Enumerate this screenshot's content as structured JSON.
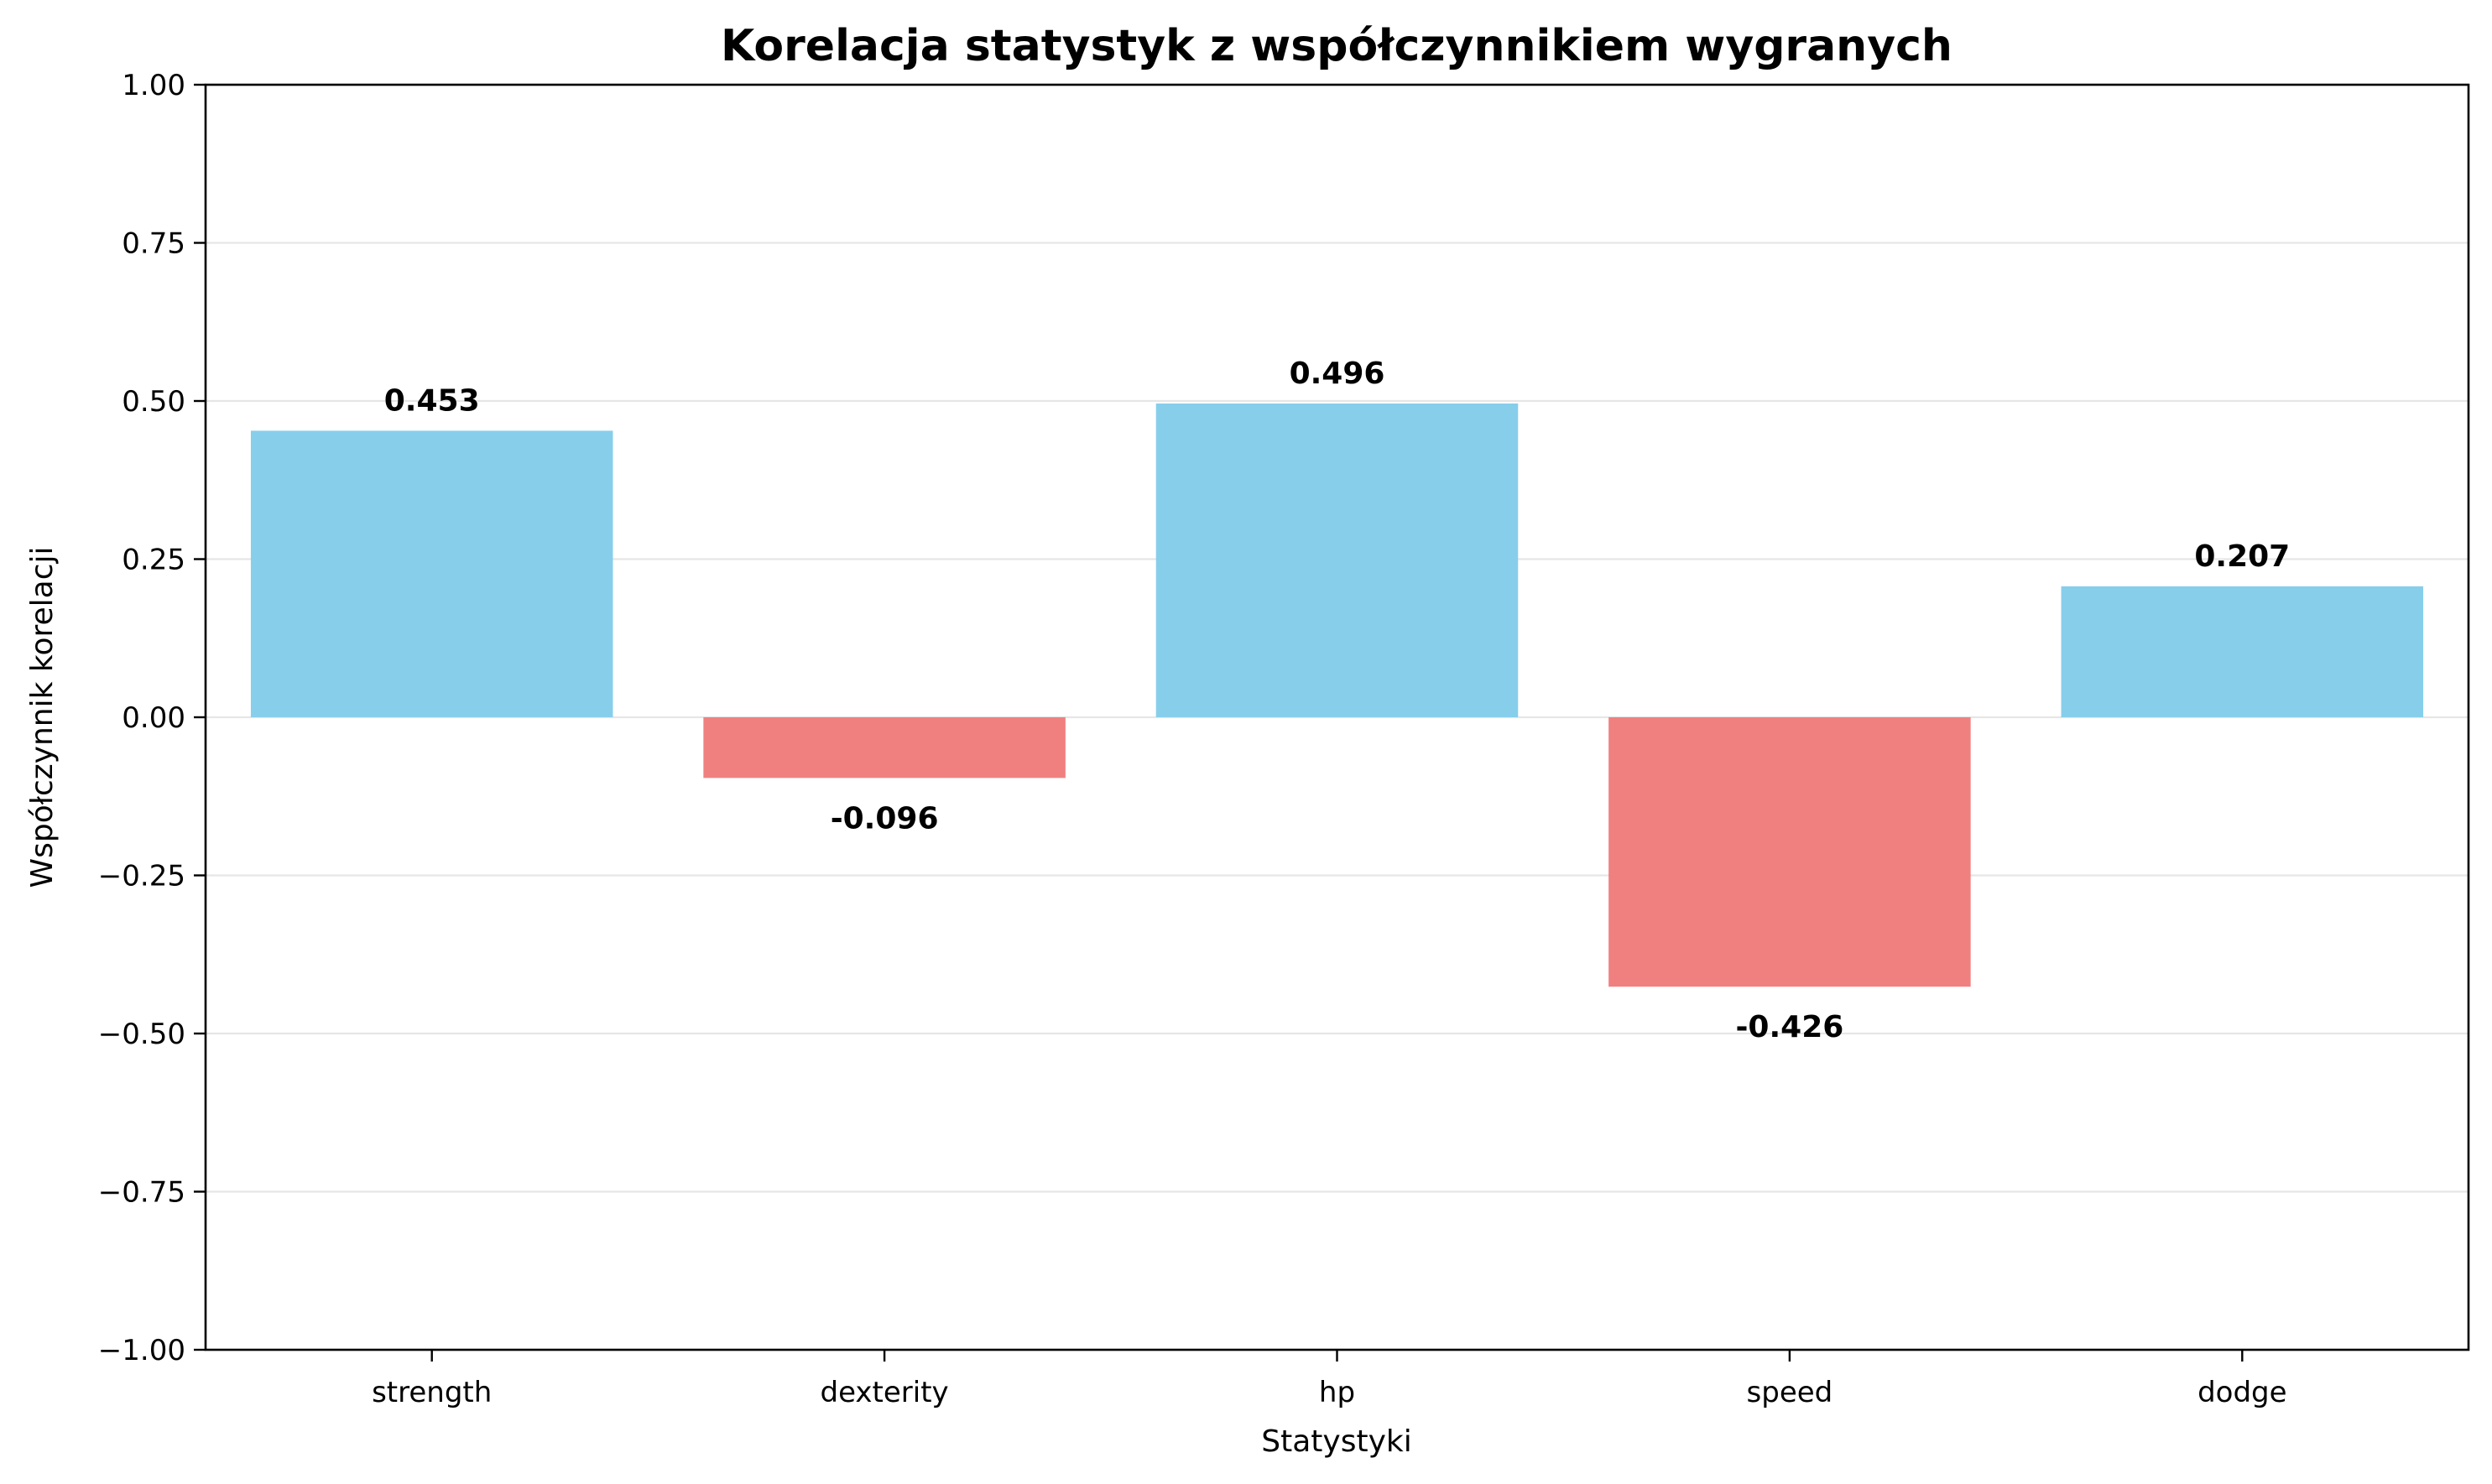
{
  "chart_data": {
    "type": "bar",
    "title": "Korelacja statystyk z współczynnikiem wygranych",
    "xlabel": "Statystyki",
    "ylabel": "Współczynnik korelacji",
    "categories": [
      "strength",
      "dexterity",
      "hp",
      "speed",
      "dodge"
    ],
    "values": [
      0.453,
      -0.096,
      0.496,
      -0.426,
      0.207
    ],
    "value_labels": [
      "0.453",
      "-0.096",
      "0.496",
      "-0.426",
      "0.207"
    ],
    "ylim": [
      -1.0,
      1.0
    ],
    "yticks": [
      -1.0,
      -0.75,
      -0.5,
      -0.25,
      0.0,
      0.25,
      0.5,
      0.75,
      1.0
    ],
    "ytick_labels": [
      "−1.00",
      "−0.75",
      "−0.50",
      "−0.25",
      "0.00",
      "0.25",
      "0.50",
      "0.75",
      "1.00"
    ],
    "grid": "horizontal",
    "colors": {
      "positive": "#87CEEB",
      "negative": "#F08080",
      "grid": "#e6e6e6",
      "axis": "#000000"
    }
  }
}
